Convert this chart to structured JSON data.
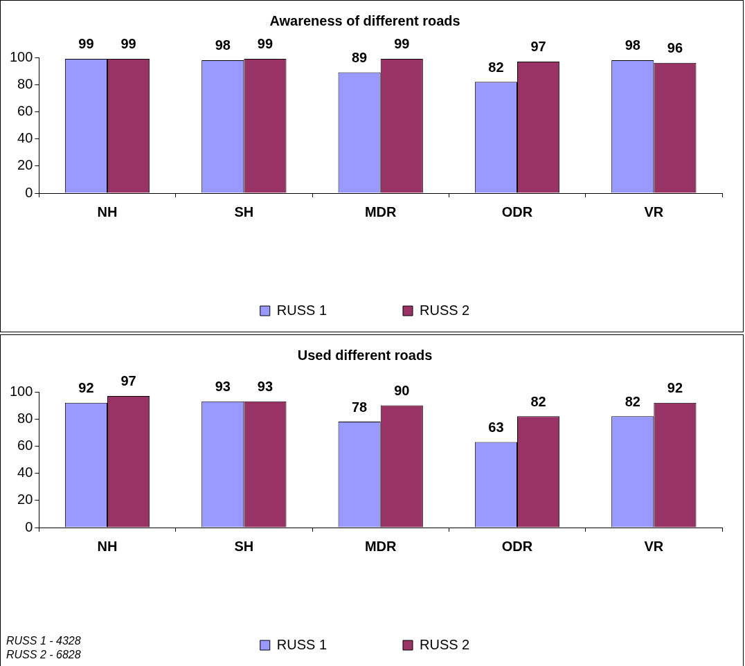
{
  "chart_data": [
    {
      "type": "bar",
      "title": "Awareness of different roads",
      "categories": [
        "NH",
        "SH",
        "MDR",
        "ODR",
        "VR"
      ],
      "series": [
        {
          "name": "RUSS 1",
          "color": "#9999ff",
          "values": [
            99,
            98,
            89,
            82,
            98
          ]
        },
        {
          "name": "RUSS 2",
          "color": "#993366",
          "values": [
            99,
            99,
            99,
            97,
            96
          ]
        }
      ],
      "ylim": [
        0,
        100
      ],
      "yticks": [
        0,
        20,
        40,
        60,
        80,
        100
      ],
      "grid": false,
      "legend": "bottom",
      "data_labels": true
    },
    {
      "type": "bar",
      "title": "Used different roads",
      "categories": [
        "NH",
        "SH",
        "MDR",
        "ODR",
        "VR"
      ],
      "series": [
        {
          "name": "RUSS 1",
          "color": "#9999ff",
          "values": [
            92,
            93,
            78,
            63,
            82
          ]
        },
        {
          "name": "RUSS 2",
          "color": "#993366",
          "values": [
            97,
            93,
            90,
            82,
            92
          ]
        }
      ],
      "ylim": [
        0,
        100
      ],
      "yticks": [
        0,
        20,
        40,
        60,
        80,
        100
      ],
      "grid": false,
      "legend": "bottom",
      "data_labels": true,
      "annotations": [
        "RUSS 1 - 4328",
        "RUSS 2 - 6828"
      ]
    }
  ]
}
